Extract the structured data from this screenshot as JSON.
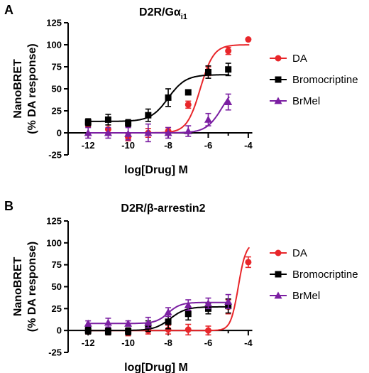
{
  "chart_data": [
    {
      "type": "scatter",
      "panel_label": "A",
      "title": "D2R/Gα",
      "title_subscript": "i1",
      "xlabel": "log[Drug] M",
      "ylabel_line1": "NanoBRET",
      "ylabel_line2": "(% DA response)",
      "xlim": [
        -13,
        -3.5
      ],
      "ylim": [
        -25,
        125
      ],
      "xticks": [
        -12,
        -10,
        -8,
        -6,
        -4
      ],
      "yticks": [
        -25,
        0,
        25,
        50,
        75,
        100,
        125
      ],
      "legend_position": "right",
      "series": [
        {
          "name": "DA",
          "color": "#e8262a",
          "marker": "circle",
          "x": [
            -12,
            -11,
            -10,
            -9,
            -8,
            -7,
            -6,
            -5,
            -4
          ],
          "y": [
            11,
            4,
            -5,
            0,
            2,
            32,
            70,
            93,
            106
          ],
          "err": [
            4,
            5,
            4,
            5,
            4,
            4,
            5,
            4,
            0
          ],
          "fit": {
            "bottom": 0,
            "top": 100,
            "logEC50": -6.4,
            "hill": 1.3
          }
        },
        {
          "name": "Bromocriptine",
          "color": "#000000",
          "marker": "square",
          "x": [
            -12,
            -11,
            -10,
            -9,
            -8,
            -7,
            -6,
            -5
          ],
          "y": [
            12,
            15,
            11,
            20,
            40,
            46,
            69,
            72
          ],
          "err": [
            4,
            6,
            4,
            7,
            10,
            0,
            7,
            7
          ],
          "fit": {
            "bottom": 13,
            "top": 66,
            "logEC50": -8.0,
            "hill": 1.0
          }
        },
        {
          "name": "BrMel",
          "color": "#7b1fa2",
          "marker": "triangle",
          "x": [
            -12,
            -11,
            -10,
            -9,
            -8,
            -7,
            -6,
            -5
          ],
          "y": [
            0,
            0,
            -1,
            0,
            0,
            2,
            15,
            35
          ],
          "err": [
            6,
            6,
            7,
            10,
            6,
            6,
            7,
            9
          ],
          "fit": {
            "bottom": 0,
            "top": 58,
            "logEC50": -5.3,
            "hill": 1.1
          }
        }
      ]
    },
    {
      "type": "scatter",
      "panel_label": "B",
      "title": "D2R/β-arrestin2",
      "title_subscript": "",
      "xlabel": "log[Drug] M",
      "ylabel_line1": "NanoBRET",
      "ylabel_line2": "(% DA response)",
      "xlim": [
        -13,
        -3.5
      ],
      "ylim": [
        -25,
        125
      ],
      "xticks": [
        -12,
        -10,
        -8,
        -6,
        -4
      ],
      "yticks": [
        -25,
        0,
        25,
        50,
        75,
        100,
        125
      ],
      "legend_position": "right",
      "series": [
        {
          "name": "DA",
          "color": "#e8262a",
          "marker": "circle",
          "x": [
            -12,
            -11,
            -10,
            -9,
            -8,
            -7,
            -6,
            -5,
            -4
          ],
          "y": [
            -1,
            -1,
            -2,
            0,
            1,
            1,
            0,
            27,
            78
          ],
          "err": [
            3,
            4,
            4,
            4,
            5,
            6,
            5,
            8,
            6
          ],
          "fit": {
            "bottom": 0,
            "top": 100,
            "logEC50": -4.5,
            "hill": 2.3
          }
        },
        {
          "name": "Bromocriptine",
          "color": "#000000",
          "marker": "square",
          "x": [
            -12,
            -11,
            -10,
            -9,
            -8,
            -7,
            -6,
            -5
          ],
          "y": [
            0,
            -1,
            -1,
            5,
            10,
            19,
            25,
            28
          ],
          "err": [
            4,
            4,
            4,
            6,
            8,
            7,
            6,
            8
          ],
          "fit": {
            "bottom": 0,
            "top": 27,
            "logEC50": -7.9,
            "hill": 1.1
          }
        },
        {
          "name": "BrMel",
          "color": "#7b1fa2",
          "marker": "triangle",
          "x": [
            -12,
            -11,
            -10,
            -9,
            -8,
            -7,
            -6,
            -5
          ],
          "y": [
            8,
            9,
            8,
            9,
            21,
            29,
            31,
            33
          ],
          "err": [
            3,
            5,
            3,
            6,
            5,
            6,
            6,
            8
          ],
          "fit": {
            "bottom": 8,
            "top": 32,
            "logEC50": -8.0,
            "hill": 1.4
          }
        }
      ]
    }
  ]
}
